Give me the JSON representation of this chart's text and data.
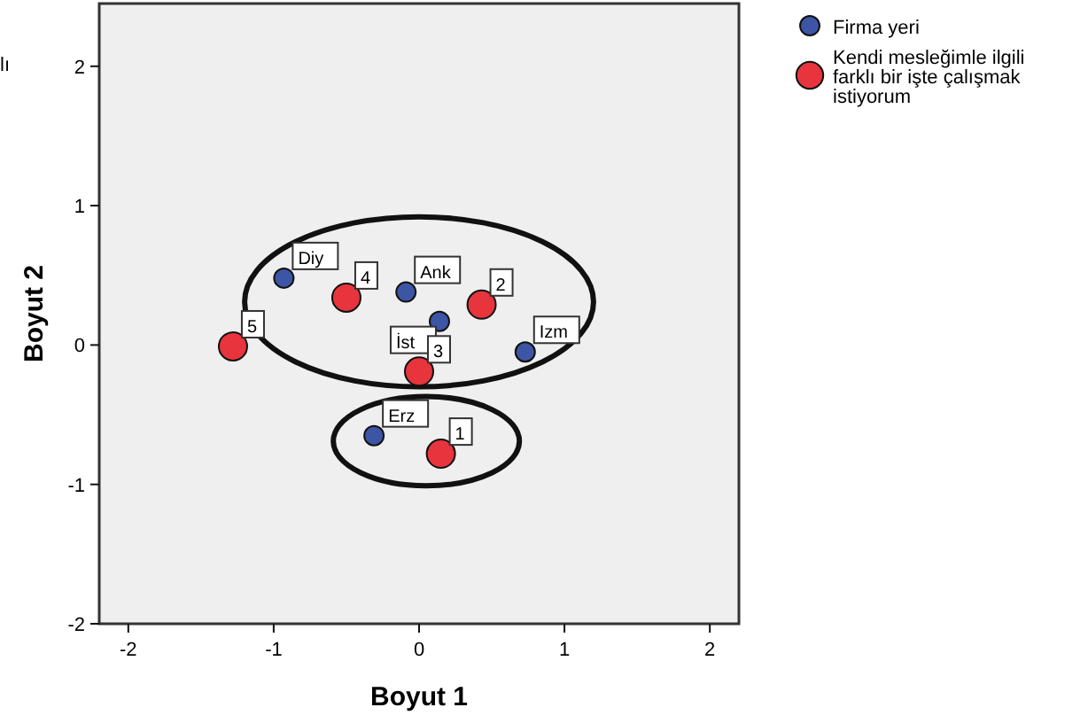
{
  "chart_data": {
    "type": "scatter",
    "xlabel": "Boyut 1",
    "ylabel": "Boyut 2",
    "xlim": [
      -2.2,
      2.2
    ],
    "ylim": [
      -2,
      2.45
    ],
    "xticks": [
      -2,
      -1,
      0,
      1,
      2
    ],
    "yticks": [
      -2,
      -1,
      0,
      1,
      2
    ],
    "grid": false,
    "legend": "top right",
    "marker": "circle",
    "series": [
      {
        "name": "Firma yeri",
        "color": "#3c55a5",
        "x": [
          -0.93,
          -0.09,
          0.14,
          0.73,
          -0.31
        ],
        "values": [
          0.48,
          0.38,
          0.17,
          -0.05,
          -0.65
        ]
      },
      {
        "name": "Kendi mesleğimle ilgili farklı bir işte çalışmak istiyorum",
        "color": "#e8343c",
        "x": [
          0.15,
          0.43,
          0.0,
          -0.5,
          -1.28
        ],
        "values": [
          -0.78,
          0.29,
          -0.19,
          0.34,
          -0.01
        ]
      }
    ],
    "annotations": [
      "lı",
      {
        "text": "Diy",
        "x": -0.93,
        "y": 0.48
      },
      {
        "text": "Ank",
        "x": -0.09,
        "y": 0.38
      },
      {
        "text": "İst",
        "x": 0.14,
        "y": 0.17
      },
      {
        "text": "Izm",
        "x": 0.73,
        "y": -0.05
      },
      {
        "text": "Erz",
        "x": -0.31,
        "y": -0.65
      },
      {
        "text": "1",
        "x": 0.15,
        "y": -0.78
      },
      {
        "text": "2",
        "x": 0.43,
        "y": 0.29
      },
      {
        "text": "3",
        "x": 0.0,
        "y": -0.19
      },
      {
        "text": "4",
        "x": -0.5,
        "y": 0.34
      },
      {
        "text": "5",
        "x": -1.28,
        "y": -0.01
      }
    ]
  }
}
